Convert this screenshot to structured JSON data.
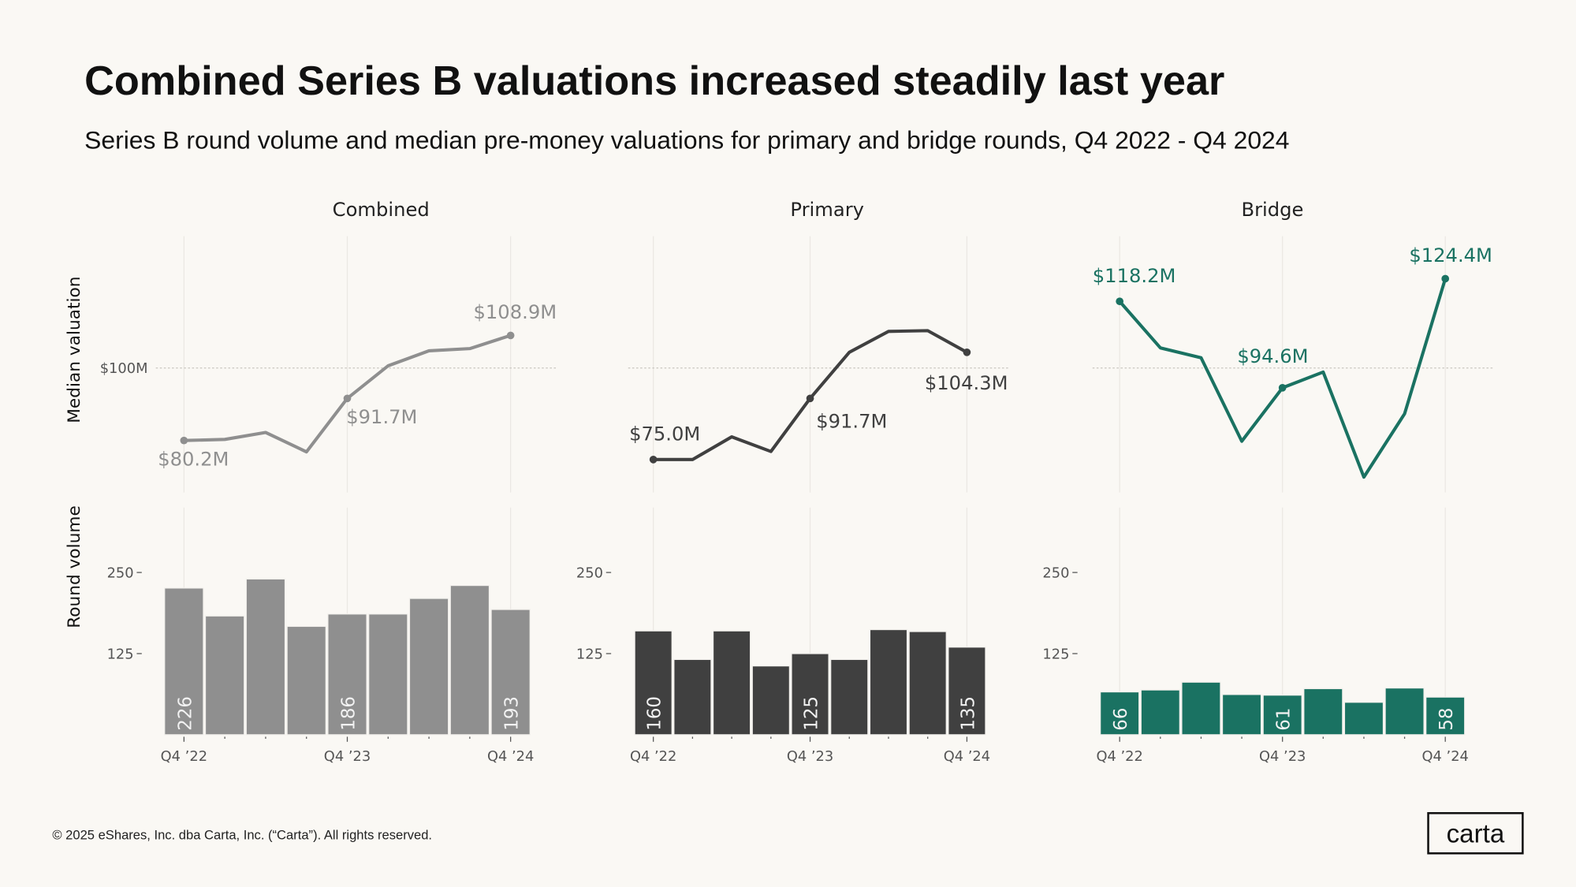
{
  "title": "Combined Series B valuations increased steadily last year",
  "subtitle": "Series B round volume and median pre-money valuations for  primary and bridge rounds, Q4 2022 - Q4 2024",
  "footer": "© 2025 eShares, Inc. dba Carta, Inc. (“Carta”). All rights reserved.",
  "logo": "carta",
  "axis_labels": {
    "valuation": "Median valuation",
    "volume": "Round volume"
  },
  "chart_data": [
    {
      "type": "line",
      "panel": "Combined",
      "color": "#8f8f8f",
      "ylabel": "Median valuation",
      "ylim": [
        66,
        136
      ],
      "reference_line": 100,
      "reference_label": "$100M",
      "x": [
        "Q4 '22",
        "Q1 '23",
        "Q2 '23",
        "Q3 '23",
        "Q4 '23",
        "Q1 '24",
        "Q2 '24",
        "Q3 '24",
        "Q4 '24"
      ],
      "values": [
        80.2,
        80.5,
        82.4,
        77.1,
        91.7,
        100.6,
        104.7,
        105.3,
        108.9
      ],
      "labels": [
        {
          "index": 0,
          "text": "$80.2M"
        },
        {
          "index": 4,
          "text": "$91.7M"
        },
        {
          "index": 8,
          "text": "$108.9M"
        }
      ]
    },
    {
      "type": "line",
      "panel": "Primary",
      "color": "#404040",
      "ylim": [
        66,
        136
      ],
      "reference_line": 100,
      "x": [
        "Q4 '22",
        "Q1 '23",
        "Q2 '23",
        "Q3 '23",
        "Q4 '23",
        "Q1 '24",
        "Q2 '24",
        "Q3 '24",
        "Q4 '24"
      ],
      "values": [
        75.0,
        75.0,
        81.2,
        77.2,
        91.7,
        104.3,
        110.0,
        110.2,
        104.3
      ],
      "labels": [
        {
          "index": 0,
          "text": "$75.0M"
        },
        {
          "index": 4,
          "text": "$91.7M"
        },
        {
          "index": 8,
          "text": "$104.3M"
        }
      ]
    },
    {
      "type": "line",
      "panel": "Bridge",
      "color": "#1a7262",
      "ylim": [
        66,
        136
      ],
      "reference_line": 100,
      "x": [
        "Q4 '22",
        "Q1 '23",
        "Q2 '23",
        "Q3 '23",
        "Q4 '23",
        "Q1 '24",
        "Q2 '24",
        "Q3 '24",
        "Q4 '24"
      ],
      "values": [
        118.2,
        105.5,
        102.8,
        80.0,
        94.6,
        98.9,
        70.2,
        87.5,
        124.4
      ],
      "labels": [
        {
          "index": 0,
          "text": "$118.2M"
        },
        {
          "index": 4,
          "text": "$94.6M"
        },
        {
          "index": 8,
          "text": "$124.4M"
        }
      ]
    },
    {
      "type": "bar",
      "panel": "Combined",
      "color": "#8f8f8f",
      "ylabel": "Round volume",
      "ylim": [
        0,
        350
      ],
      "yticks": [
        "250",
        "125"
      ],
      "x": [
        "Q4 '22",
        "Q1 '23",
        "Q2 '23",
        "Q3 '23",
        "Q4 '23",
        "Q1 '24",
        "Q2 '24",
        "Q3 '24",
        "Q4 '24"
      ],
      "xtick_labels": [
        "Q4 ’22",
        "Q4 ’23",
        "Q4 ’24"
      ],
      "values": [
        226,
        183,
        240,
        167,
        186,
        186,
        210,
        230,
        193
      ],
      "labels": [
        {
          "index": 0,
          "text": "226"
        },
        {
          "index": 4,
          "text": "186"
        },
        {
          "index": 8,
          "text": "193"
        }
      ]
    },
    {
      "type": "bar",
      "panel": "Primary",
      "color": "#404040",
      "ylim": [
        0,
        350
      ],
      "yticks": [
        "250",
        "125"
      ],
      "x": [
        "Q4 '22",
        "Q1 '23",
        "Q2 '23",
        "Q3 '23",
        "Q4 '23",
        "Q1 '24",
        "Q2 '24",
        "Q3 '24",
        "Q4 '24"
      ],
      "xtick_labels": [
        "Q4 ’22",
        "Q4 ’23",
        "Q4 ’24"
      ],
      "values": [
        160,
        116,
        160,
        106,
        125,
        116,
        162,
        159,
        135
      ],
      "labels": [
        {
          "index": 0,
          "text": "160"
        },
        {
          "index": 4,
          "text": "125"
        },
        {
          "index": 8,
          "text": "135"
        }
      ]
    },
    {
      "type": "bar",
      "panel": "Bridge",
      "color": "#1a7262",
      "ylim": [
        0,
        350
      ],
      "yticks": [
        "250",
        "125"
      ],
      "x": [
        "Q4 '22",
        "Q1 '23",
        "Q2 '23",
        "Q3 '23",
        "Q4 '23",
        "Q1 '24",
        "Q2 '24",
        "Q3 '24",
        "Q4 '24"
      ],
      "xtick_labels": [
        "Q4 ’22",
        "Q4 ’23",
        "Q4 ’24"
      ],
      "values": [
        66,
        69,
        81,
        62,
        61,
        71,
        50,
        72,
        58
      ],
      "labels": [
        {
          "index": 0,
          "text": "66"
        },
        {
          "index": 4,
          "text": "61"
        },
        {
          "index": 8,
          "text": "58"
        }
      ]
    }
  ]
}
